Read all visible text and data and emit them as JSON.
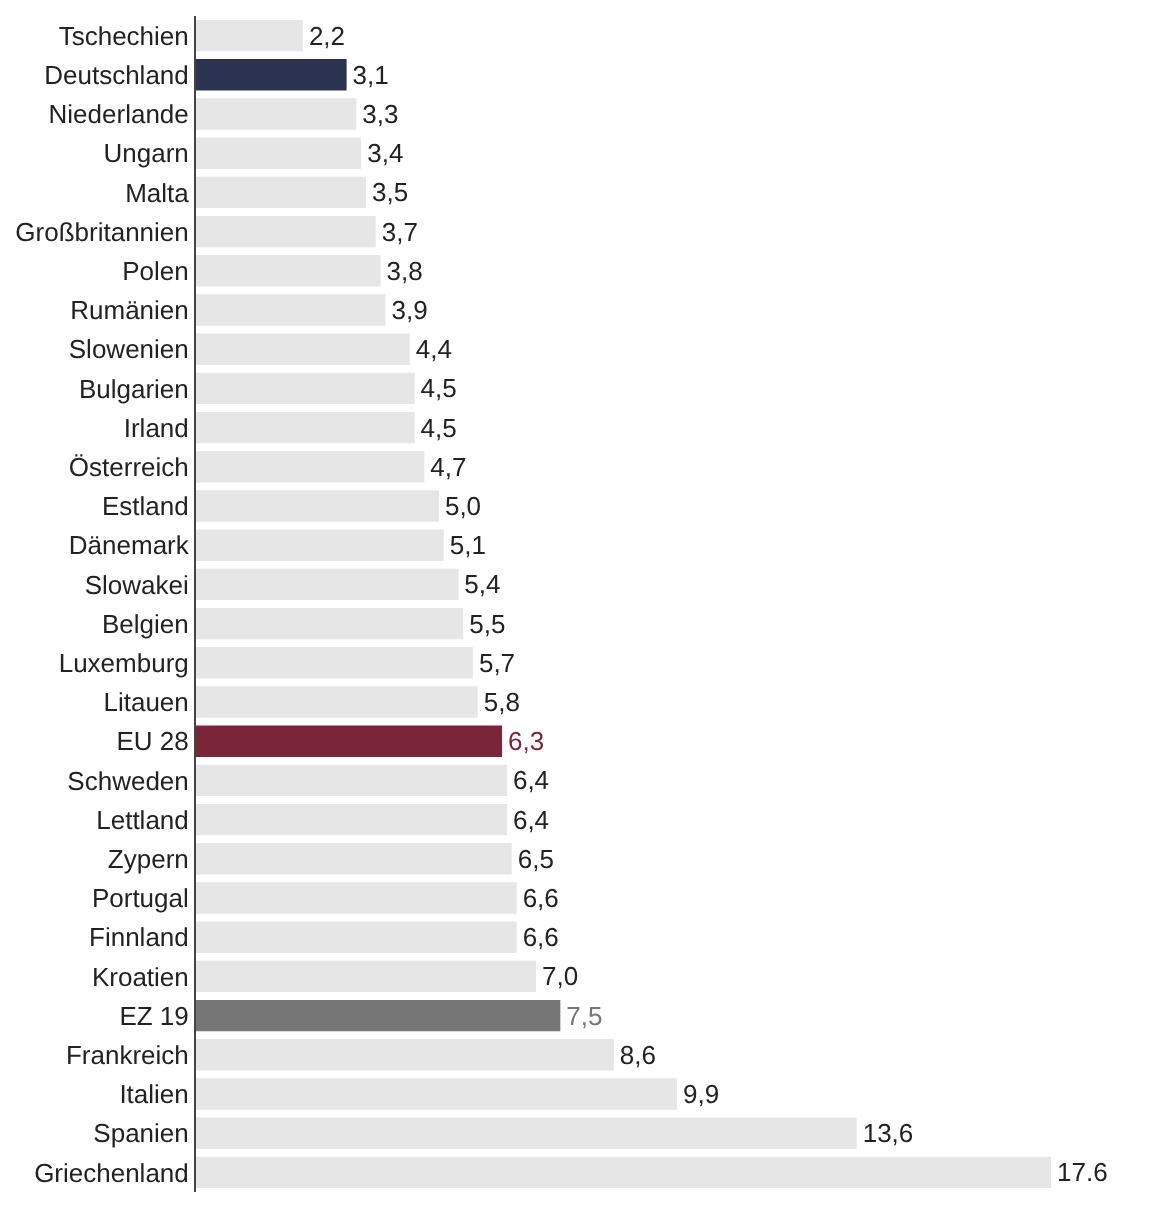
{
  "chart_data": {
    "type": "bar",
    "orientation": "horizontal",
    "categories": [
      "Tschechien",
      "Deutschland",
      "Niederlande",
      "Ungarn",
      "Malta",
      "Großbritannien",
      "Polen",
      "Rumänien",
      "Slowenien",
      "Bulgarien",
      "Irland",
      "Österreich",
      "Estland",
      "Dänemark",
      "Slowakei",
      "Belgien",
      "Luxemburg",
      "Litauen",
      "EU 28",
      "Schweden",
      "Lettland",
      "Zypern",
      "Portugal",
      "Finnland",
      "Kroatien",
      "EZ 19",
      "Frankreich",
      "Italien",
      "Spanien",
      "Griechenland"
    ],
    "values": [
      2.2,
      3.1,
      3.3,
      3.4,
      3.5,
      3.7,
      3.8,
      3.9,
      4.4,
      4.5,
      4.5,
      4.7,
      5.0,
      5.1,
      5.4,
      5.5,
      5.7,
      5.8,
      6.3,
      6.4,
      6.4,
      6.5,
      6.6,
      6.6,
      7.0,
      7.5,
      8.6,
      9.9,
      13.6,
      17.6
    ],
    "value_labels": [
      "2,2",
      "3,1",
      "3,3",
      "3,4",
      "3,5",
      "3,7",
      "3,8",
      "3,9",
      "4,4",
      "4,5",
      "4,5",
      "4,7",
      "5,0",
      "5,1",
      "5,4",
      "5,5",
      "5,7",
      "5,8",
      "6,3",
      "6,4",
      "6,4",
      "6,5",
      "6,6",
      "6,6",
      "7,0",
      "7,5",
      "8,6",
      "9,9",
      "13,6",
      "17.6"
    ],
    "colors": [
      "#e6e6e6",
      "#2b3350",
      "#e6e6e6",
      "#e6e6e6",
      "#e6e6e6",
      "#e6e6e6",
      "#e6e6e6",
      "#e6e6e6",
      "#e6e6e6",
      "#e6e6e6",
      "#e6e6e6",
      "#e6e6e6",
      "#e6e6e6",
      "#e6e6e6",
      "#e6e6e6",
      "#e6e6e6",
      "#e6e6e6",
      "#e6e6e6",
      "#7b2638",
      "#e6e6e6",
      "#e6e6e6",
      "#e6e6e6",
      "#e6e6e6",
      "#e6e6e6",
      "#e6e6e6",
      "#767676",
      "#e6e6e6",
      "#e6e6e6",
      "#e6e6e6",
      "#e6e6e6"
    ]
  }
}
